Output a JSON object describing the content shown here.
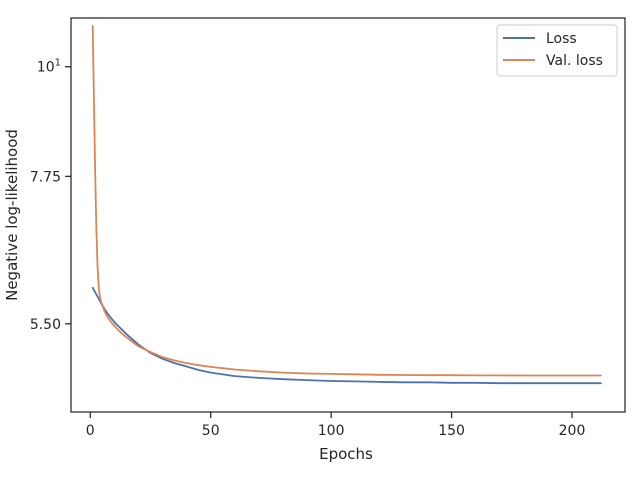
{
  "chart_data": {
    "type": "line",
    "title": "",
    "xlabel": "Epochs",
    "ylabel": "Negative log-likelihood",
    "xlim": [
      -8,
      222
    ],
    "ylim": [
      4.48,
      11.2
    ],
    "yscale": "log",
    "x_ticks": [
      0,
      50,
      100,
      150,
      200
    ],
    "x_tick_labels": [
      "0",
      "50",
      "100",
      "150",
      "200"
    ],
    "y_ticks": [
      10,
      7.75,
      5.5
    ],
    "y_tick_labels": [
      "10",
      "7.75",
      "5.50"
    ],
    "y_tick_exponent": "1",
    "grid": false,
    "legend_position": "top-right",
    "series": [
      {
        "name": "Loss",
        "color": "#4c72b0",
        "x": [
          1,
          3,
          5,
          7,
          9,
          11,
          13,
          15,
          20,
          25,
          30,
          35,
          40,
          45,
          50,
          60,
          70,
          80,
          90,
          100,
          110,
          120,
          130,
          140,
          150,
          160,
          170,
          180,
          190,
          200,
          212
        ],
        "y": [
          5.98,
          5.86,
          5.74,
          5.64,
          5.56,
          5.49,
          5.43,
          5.37,
          5.24,
          5.14,
          5.07,
          5.02,
          4.98,
          4.94,
          4.91,
          4.87,
          4.85,
          4.835,
          4.825,
          4.815,
          4.81,
          4.805,
          4.8,
          4.8,
          4.795,
          4.795,
          4.79,
          4.79,
          4.79,
          4.79,
          4.79
        ]
      },
      {
        "name": "Val. loss",
        "color": "#dd8452",
        "x": [
          1,
          1.5,
          2,
          2.5,
          3,
          3.5,
          4,
          5,
          6,
          7,
          8,
          9,
          11,
          13,
          15,
          20,
          25,
          30,
          35,
          40,
          45,
          50,
          60,
          70,
          80,
          90,
          100,
          110,
          120,
          130,
          140,
          150,
          160,
          170,
          180,
          190,
          200,
          212
        ],
        "y": [
          11.0,
          9.3,
          7.9,
          6.9,
          6.3,
          6.0,
          5.85,
          5.74,
          5.66,
          5.6,
          5.55,
          5.51,
          5.44,
          5.38,
          5.33,
          5.22,
          5.15,
          5.09,
          5.05,
          5.02,
          4.995,
          4.975,
          4.945,
          4.925,
          4.91,
          4.9,
          4.895,
          4.89,
          4.885,
          4.882,
          4.88,
          4.88,
          4.878,
          4.878,
          4.877,
          4.877,
          4.877,
          4.877
        ]
      }
    ]
  }
}
